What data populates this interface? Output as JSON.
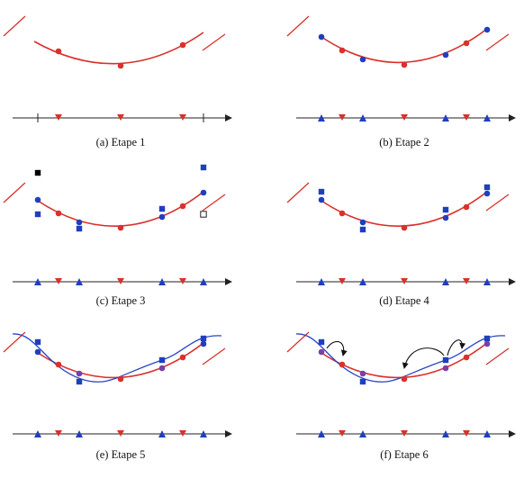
{
  "colors": {
    "curve": "#d9312b",
    "red_marker": "#d9312b",
    "blue_marker": "#1f3fbf",
    "blue_curve": "#2a44c4",
    "purple_marker": "#7a3fa8",
    "axis": "#222222",
    "square_black": "#000000"
  },
  "panels": [
    {
      "caption": "(a) Etape 1"
    },
    {
      "caption": "(b) Etape 2"
    },
    {
      "caption": "(c) Etape 3"
    },
    {
      "caption": "(d) Etape 4"
    },
    {
      "caption": "(e) Etape 5"
    },
    {
      "caption": "(f) Etape 6"
    }
  ]
}
